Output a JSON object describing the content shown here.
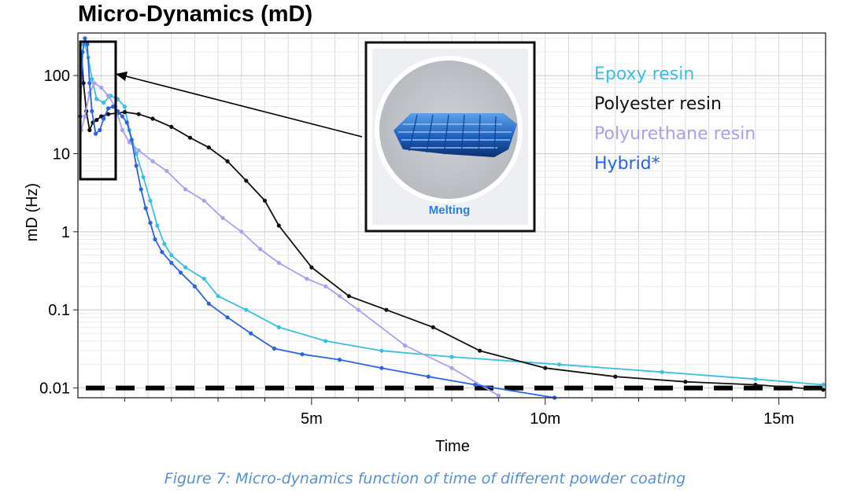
{
  "chart_data": {
    "type": "line",
    "title": "Micro-Dynamics (mD)",
    "xlabel": "Time",
    "ylabel": "mD (Hz)",
    "yscale": "log",
    "xlim": [
      0,
      16
    ],
    "ylim": [
      0.0075,
      350
    ],
    "x_ticks": [
      {
        "value": 5,
        "label": "5m"
      },
      {
        "value": 10,
        "label": "10m"
      },
      {
        "value": 15,
        "label": "15m"
      }
    ],
    "y_ticks": [
      {
        "value": 0.01,
        "label": "0.01"
      },
      {
        "value": 0.1,
        "label": "0.1"
      },
      {
        "value": 1,
        "label": "1"
      },
      {
        "value": 10,
        "label": "10"
      },
      {
        "value": 100,
        "label": "100"
      }
    ],
    "threshold": {
      "value": 0.01,
      "style": "dashed"
    },
    "legend_position": "top-right",
    "series": [
      {
        "name": "Epoxy resin",
        "color": "#3bbfe0",
        "x": [
          0.07,
          0.15,
          0.22,
          0.3,
          0.4,
          0.55,
          0.7,
          0.85,
          1.0,
          1.1,
          1.25,
          1.4,
          1.55,
          1.7,
          1.85,
          2.0,
          2.3,
          2.7,
          3.0,
          3.6,
          4.3,
          5.3,
          6.5,
          8.0,
          10.3,
          12.5,
          14.5,
          15.95
        ],
        "y": [
          250,
          250,
          170,
          90,
          50,
          45,
          55,
          50,
          40,
          20,
          10,
          5,
          2.5,
          1.2,
          0.7,
          0.5,
          0.35,
          0.25,
          0.15,
          0.1,
          0.06,
          0.04,
          0.03,
          0.025,
          0.02,
          0.016,
          0.013,
          0.011
        ]
      },
      {
        "name": "Polyester resin",
        "color": "#111111",
        "x": [
          0.07,
          0.12,
          0.18,
          0.25,
          0.32,
          0.4,
          0.5,
          0.65,
          0.85,
          1.0,
          1.3,
          1.6,
          2.0,
          2.4,
          2.8,
          3.2,
          3.6,
          4.0,
          4.3,
          5.0,
          5.8,
          6.6,
          7.6,
          8.6,
          10.0,
          11.5,
          13.0,
          14.5,
          15.95
        ],
        "y": [
          200,
          80,
          35,
          20,
          25,
          27,
          30,
          32,
          33,
          34,
          32,
          28,
          22,
          16,
          12,
          8,
          4.5,
          2.5,
          1.2,
          0.35,
          0.15,
          0.1,
          0.06,
          0.03,
          0.018,
          0.014,
          0.012,
          0.011,
          0.0095
        ]
      },
      {
        "name": "Polyurethane resin",
        "color": "#a9a0f0",
        "x": [
          0.07,
          0.15,
          0.25,
          0.35,
          0.5,
          0.65,
          0.8,
          0.95,
          1.1,
          1.3,
          1.6,
          1.9,
          2.3,
          2.7,
          3.1,
          3.5,
          3.9,
          4.3,
          4.9,
          5.3,
          5.6,
          6.0,
          7.0,
          8.0,
          9.0
        ],
        "y": [
          20,
          30,
          60,
          80,
          70,
          55,
          40,
          20,
          14,
          11,
          8,
          6,
          3.5,
          2.5,
          1.5,
          1.0,
          0.6,
          0.4,
          0.25,
          0.2,
          0.15,
          0.1,
          0.035,
          0.018,
          0.008
        ]
      },
      {
        "name": "Hybrid*",
        "color": "#2b63e0",
        "x": [
          0.05,
          0.1,
          0.15,
          0.2,
          0.25,
          0.3,
          0.38,
          0.47,
          0.55,
          0.65,
          0.75,
          0.85,
          0.95,
          1.05,
          1.15,
          1.25,
          1.35,
          1.45,
          1.55,
          1.65,
          1.8,
          2.0,
          2.2,
          2.5,
          2.8,
          3.2,
          3.7,
          4.2,
          4.8,
          5.6,
          6.5,
          7.5,
          8.5,
          10.2
        ],
        "y": [
          30,
          200,
          300,
          250,
          80,
          35,
          18,
          20,
          28,
          38,
          40,
          35,
          30,
          25,
          15,
          7,
          3.5,
          2,
          1.3,
          0.8,
          0.55,
          0.4,
          0.3,
          0.2,
          0.12,
          0.08,
          0.05,
          0.032,
          0.027,
          0.023,
          0.018,
          0.014,
          0.011,
          0.0075
        ]
      }
    ]
  },
  "inset": {
    "label": "Melting"
  },
  "caption": "Figure 7: Micro-dynamics function of time of different powder coating"
}
